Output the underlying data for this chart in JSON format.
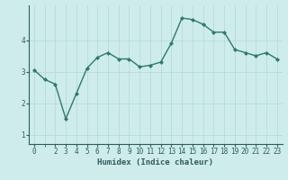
{
  "x": [
    0,
    1,
    2,
    3,
    4,
    5,
    6,
    7,
    8,
    9,
    10,
    11,
    12,
    13,
    14,
    15,
    16,
    17,
    18,
    19,
    20,
    21,
    22,
    23
  ],
  "y": [
    3.05,
    2.75,
    2.6,
    1.5,
    2.3,
    3.1,
    3.45,
    3.6,
    3.4,
    3.4,
    3.15,
    3.2,
    3.3,
    3.9,
    4.7,
    4.65,
    4.5,
    4.25,
    4.25,
    3.7,
    3.6,
    3.5,
    3.6,
    3.4
  ],
  "line_color": "#2d7a6e",
  "marker": "D",
  "markersize": 2.0,
  "linewidth": 1.0,
  "background_color": "#ceecea",
  "grid_color": "#b8dbd8",
  "xlabel": "Humidex (Indice chaleur)",
  "xlabel_fontsize": 6.5,
  "xlabel_color": "#2d5c5a",
  "tick_color": "#2d5c5a",
  "tick_fontsize": 5.5,
  "yticks": [
    1,
    2,
    3,
    4
  ],
  "ylim": [
    0.7,
    5.1
  ],
  "xlim": [
    -0.5,
    23.5
  ],
  "xticks": [
    0,
    2,
    3,
    4,
    5,
    6,
    7,
    8,
    9,
    10,
    11,
    12,
    13,
    14,
    15,
    16,
    17,
    18,
    19,
    20,
    21,
    22,
    23
  ]
}
